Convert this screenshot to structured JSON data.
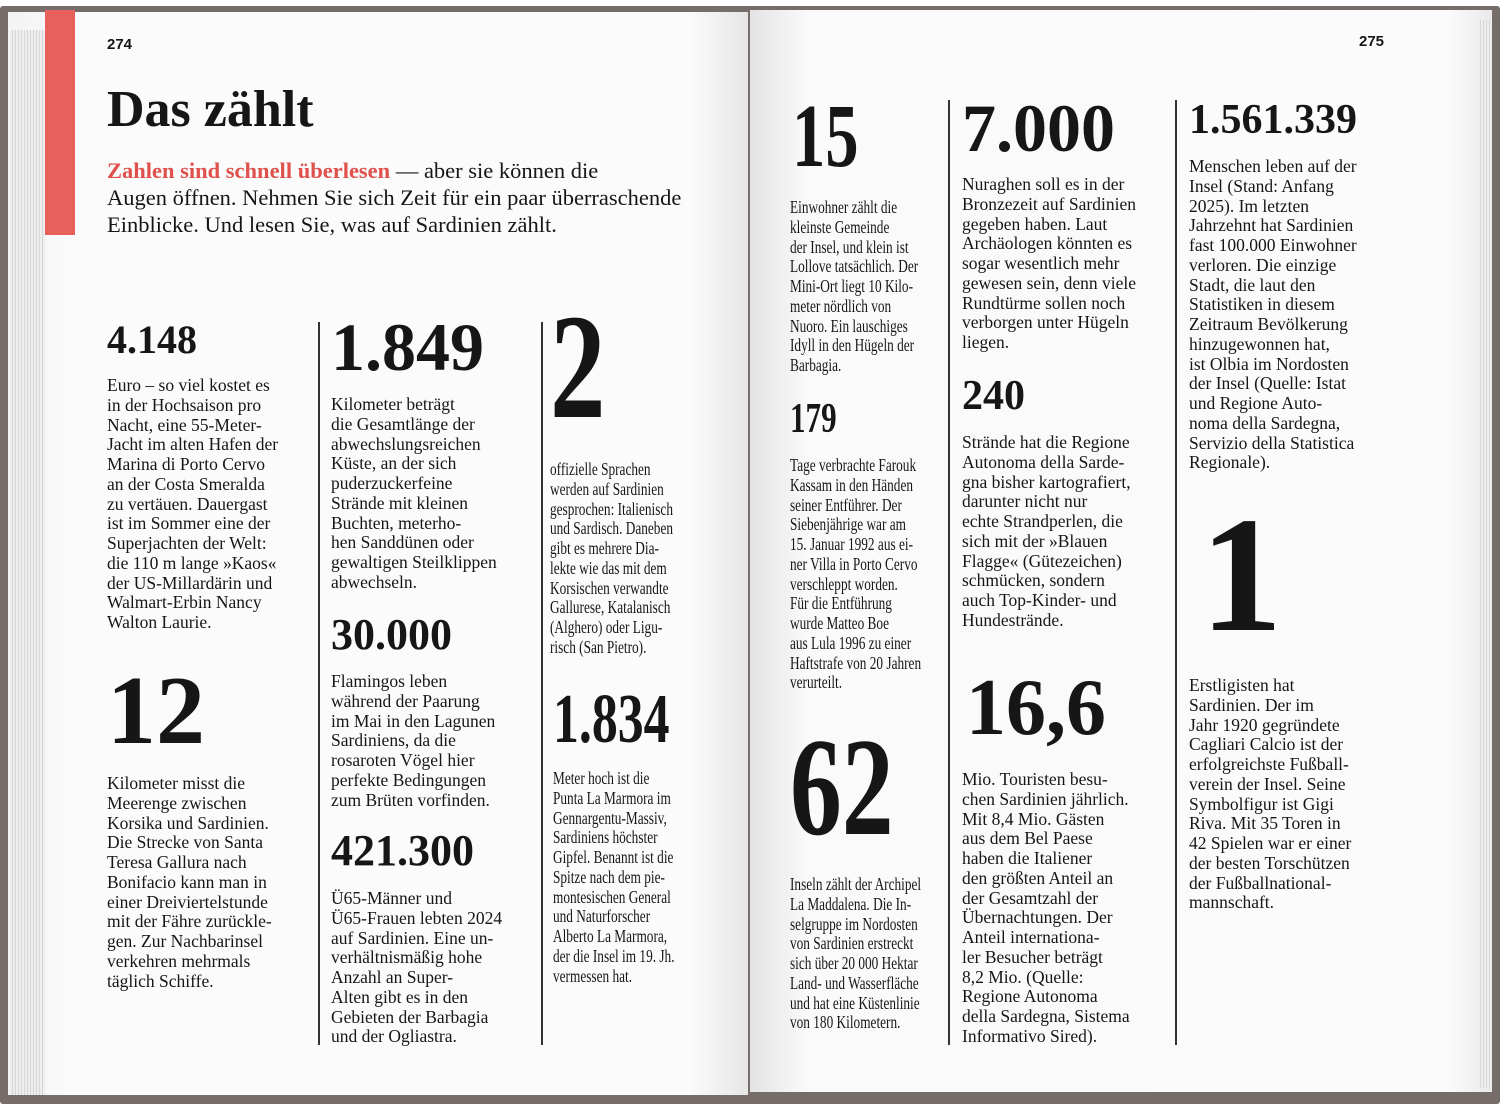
{
  "left_page": {
    "page_number": "274",
    "title": "Das zählt",
    "intro_highlight": "Zahlen sind schnell überlesen",
    "intro_rest": " — aber sie können die\nAugen öffnen. Nehmen Sie sich Zeit für ein paar überraschende\nEinblicke. Und lesen Sie, was auf Sardinien zählt.",
    "facts": [
      {
        "number": "4.148",
        "text": "Euro – so viel kostet es\nin der Hochsaison pro\nNacht, eine 55-Meter-\nJacht im alten Hafen der\nMarina di Porto Cervo\nan der Costa Smeralda\nzu vertäuen. Dauergast\nist im Sommer eine der\nSuperjachten der Welt:\ndie 110 m lange »Kaos«\nder US-Millardärin und\nWalmart-Erbin Nancy\nWalton Laurie."
      },
      {
        "number": "12",
        "text": "Kilometer misst die\nMeerenge zwischen\nKorsika und Sardinien.\nDie Strecke von Santa\nTeresa Gallura nach\nBonifacio kann man in\neiner Dreiviertelstunde\nmit der Fähre zurückle-\ngen. Zur Nachbarinsel\nverkehren mehrmals\ntäglich Schiffe."
      },
      {
        "number": "1.849",
        "text": "Kilometer beträgt\ndie Gesamtlänge der\nabwechslungsreichen\nKüste, an der sich\npuderzuckerfeine\nStrände mit kleinen\nBuchten, meterho-\nhen Sanddünen oder\ngewaltigen Steilklippen\nabwechseln."
      },
      {
        "number": "30.000",
        "text": "Flamingos leben\nwährend der Paarung\nim Mai in den Lagunen\nSardiniens, da die\nrosaroten Vögel hier\nperfekte Bedingungen\nzum Brüten vorfinden."
      },
      {
        "number": "421.300",
        "text": "Ü65-Männer und\nÜ65-Frauen lebten 2024\nauf Sardinien. Eine un-\nverhältnismäßig hohe\nAnzahl an Super-\nAlten gibt es in den\nGebieten der Barbagia\nund der Ogliastra."
      },
      {
        "number": "2",
        "text": "offizielle Sprachen\nwerden auf Sardinien\ngesprochen: Italienisch\nund Sardisch. Daneben\ngibt es mehrere Dia-\nlekte wie das mit dem\nKorsischen verwandte\nGallurese, Katalanisch\n(Alghero) oder Ligu-\nrisch (San Pietro)."
      },
      {
        "number": "1.834",
        "text": "Meter hoch ist die\nPunta La Marmora im\nGennargentu-Massiv,\nSardiniens höchster\nGipfel. Benannt ist die\nSpitze nach dem pie-\nmontesischen General\nund Naturforscher\nAlberto La Marmora,\nder die Insel im 19. Jh.\nvermessen hat."
      }
    ]
  },
  "right_page": {
    "page_number": "275",
    "facts": [
      {
        "number": "15",
        "text": "Einwohner zählt die\nkleinste Gemeinde\nder Insel, und klein ist\nLollove tatsächlich. Der\nMini-Ort liegt 10 Kilo-\nmeter nördlich von\nNuoro. Ein lauschiges\nIdyll in den Hügeln der\nBarbagia."
      },
      {
        "number": "179",
        "text": "Tage verbrachte Farouk\nKassam in den Händen\nseiner Entführer. Der\nSiebenjährige war am\n15. Januar 1992 aus ei-\nner Villa in Porto Cervo\nverschleppt worden.\nFür die Entführung\nwurde Matteo Boe\naus Lula 1996 zu einer\nHaftstrafe von 20 Jahren\nverurteilt."
      },
      {
        "number": "62",
        "text": "Inseln zählt der Archipel\nLa Maddalena. Die In-\nselgruppe im Nordosten\nvon Sardinien erstreckt\nsich über 20 000 Hektar\nLand- und Wasserfläche\nund hat eine Küstenlinie\nvon 180 Kilometern."
      },
      {
        "number": "7.000",
        "text": "Nuraghen soll es in der\nBronzezeit auf Sardinien\ngegeben haben. Laut\nArchäologen könnten es\nsogar wesentlich mehr\ngewesen sein, denn viele\nRundtürme sollen noch\nverborgen unter Hügeln\nliegen."
      },
      {
        "number": "240",
        "text": "Strände hat die Regione\nAutonoma della Sarde-\ngna bisher kartografiert,\ndarunter nicht nur\nechte Strandperlen, die\nsich mit der »Blauen\nFlagge« (Gütezeichen)\nschmücken, sondern\nauch Top-Kinder- und\nHundestrände."
      },
      {
        "number": "16,6",
        "text": "Mio. Touristen besu-\nchen Sardinien jährlich.\nMit 8,4 Mio. Gästen\naus dem Bel Paese\nhaben die Italiener\nden größten Anteil an\nder Gesamtzahl der\nÜbernachtungen. Der\nAnteil internationa-\nler Besucher beträgt\n8,2 Mio. (Quelle:\nRegione Autonoma\ndella Sardegna, Sistema\nInformativo Sired)."
      },
      {
        "number": "1.561.339",
        "text": "Menschen leben auf der\nInsel (Stand: Anfang\n2025). Im letzten\nJahrzehnt hat Sardinien\nfast 100.000 Einwohner\nverloren. Die einzige\nStadt, die laut den\nStatistiken in diesem\nZeitraum Bevölkerung\nhinzugewonnen hat,\nist Olbia im Nordosten\nder Insel (Quelle: Istat\nund Regione Auto-\nnoma della Sardegna,\nServizio della Statistica\nRegionale)."
      },
      {
        "number": "1",
        "text": "Erstligisten hat\nSardinien. Der im\nJahr 1920 gegründete\nCagliari Calcio ist der\nerfolgreichste Fußball-\nverein der Insel. Seine\nSymbolfigur ist Gigi\nRiva. Mit 35 Toren in\n42 Spielen war er einer\nder besten Torschützen\nder Fußballnational-\nmannschaft."
      }
    ]
  },
  "colors": {
    "accent": "#e8605c",
    "cover": "#766d6a"
  }
}
